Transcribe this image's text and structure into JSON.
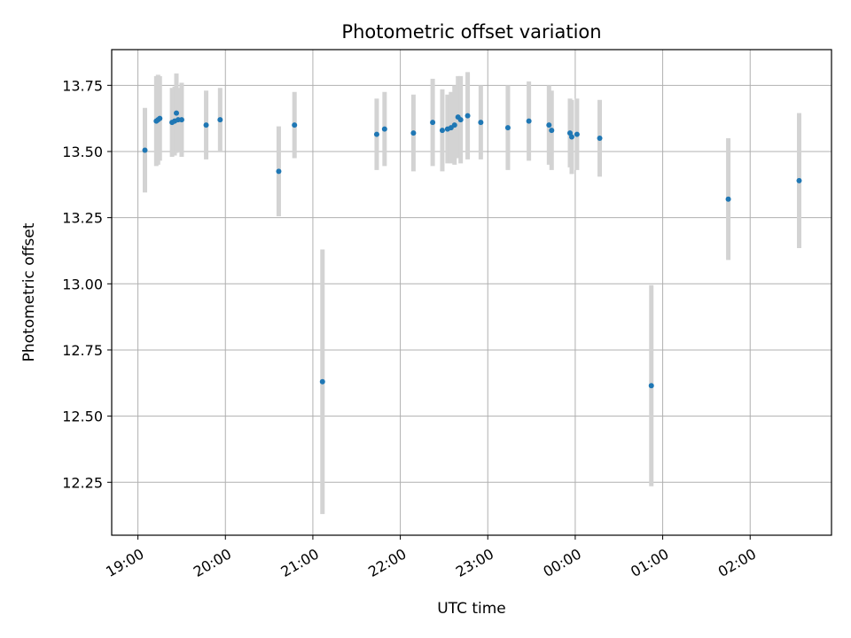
{
  "chart_data": {
    "type": "scatter",
    "title": "Photometric offset variation",
    "xlabel": "UTC time",
    "ylabel": "Photometric offset",
    "x_unit": "hours (UTC, past 19:00 on first night)",
    "xlim": [
      18.7,
      26.93
    ],
    "ylim": [
      12.05,
      13.885
    ],
    "x_ticks": [
      {
        "value": 19,
        "label": "19:00"
      },
      {
        "value": 20,
        "label": "20:00"
      },
      {
        "value": 21,
        "label": "21:00"
      },
      {
        "value": 22,
        "label": "22:00"
      },
      {
        "value": 23,
        "label": "23:00"
      },
      {
        "value": 24,
        "label": "00:00"
      },
      {
        "value": 25,
        "label": "01:00"
      },
      {
        "value": 26,
        "label": "02:00"
      }
    ],
    "y_ticks": [
      {
        "value": 12.25,
        "label": "12.25"
      },
      {
        "value": 12.5,
        "label": "12.50"
      },
      {
        "value": 12.75,
        "label": "12.75"
      },
      {
        "value": 13.0,
        "label": "13.00"
      },
      {
        "value": 13.25,
        "label": "13.25"
      },
      {
        "value": 13.5,
        "label": "13.50"
      },
      {
        "value": 13.75,
        "label": "13.75"
      }
    ],
    "grid": true,
    "point_color": "#1f77b4",
    "errorbar_color": "#d3d3d3",
    "points": [
      {
        "t": 19.08,
        "y": 13.505,
        "err": 0.16
      },
      {
        "t": 19.21,
        "y": 13.615,
        "err": 0.17
      },
      {
        "t": 19.23,
        "y": 13.62,
        "err": 0.17
      },
      {
        "t": 19.25,
        "y": 13.625,
        "err": 0.16
      },
      {
        "t": 19.39,
        "y": 13.61,
        "err": 0.13
      },
      {
        "t": 19.42,
        "y": 13.615,
        "err": 0.13
      },
      {
        "t": 19.44,
        "y": 13.645,
        "err": 0.15
      },
      {
        "t": 19.46,
        "y": 13.62,
        "err": 0.12
      },
      {
        "t": 19.5,
        "y": 13.62,
        "err": 0.14
      },
      {
        "t": 19.78,
        "y": 13.6,
        "err": 0.13
      },
      {
        "t": 19.94,
        "y": 13.62,
        "err": 0.12
      },
      {
        "t": 20.61,
        "y": 13.425,
        "err": 0.17
      },
      {
        "t": 20.79,
        "y": 13.6,
        "err": 0.125
      },
      {
        "t": 21.11,
        "y": 12.63,
        "err": 0.5
      },
      {
        "t": 21.73,
        "y": 13.565,
        "err": 0.135
      },
      {
        "t": 21.82,
        "y": 13.585,
        "err": 0.14
      },
      {
        "t": 22.15,
        "y": 13.57,
        "err": 0.145
      },
      {
        "t": 22.37,
        "y": 13.61,
        "err": 0.165
      },
      {
        "t": 22.48,
        "y": 13.58,
        "err": 0.155
      },
      {
        "t": 22.54,
        "y": 13.585,
        "err": 0.13
      },
      {
        "t": 22.58,
        "y": 13.59,
        "err": 0.135
      },
      {
        "t": 22.62,
        "y": 13.6,
        "err": 0.15
      },
      {
        "t": 22.66,
        "y": 13.63,
        "err": 0.155
      },
      {
        "t": 22.69,
        "y": 13.62,
        "err": 0.165
      },
      {
        "t": 22.77,
        "y": 13.635,
        "err": 0.165
      },
      {
        "t": 22.92,
        "y": 13.61,
        "err": 0.14
      },
      {
        "t": 23.23,
        "y": 13.59,
        "err": 0.16
      },
      {
        "t": 23.47,
        "y": 13.615,
        "err": 0.15
      },
      {
        "t": 23.7,
        "y": 13.6,
        "err": 0.15
      },
      {
        "t": 23.73,
        "y": 13.58,
        "err": 0.15
      },
      {
        "t": 23.94,
        "y": 13.57,
        "err": 0.13
      },
      {
        "t": 23.96,
        "y": 13.555,
        "err": 0.14
      },
      {
        "t": 24.02,
        "y": 13.565,
        "err": 0.135
      },
      {
        "t": 24.28,
        "y": 13.55,
        "err": 0.145
      },
      {
        "t": 24.87,
        "y": 12.615,
        "err": 0.38
      },
      {
        "t": 25.75,
        "y": 13.32,
        "err": 0.23
      },
      {
        "t": 26.56,
        "y": 13.39,
        "err": 0.255
      }
    ]
  }
}
